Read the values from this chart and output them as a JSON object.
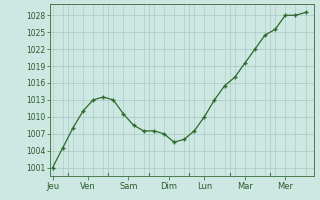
{
  "y_values": [
    1001,
    1004.5,
    1008,
    1011,
    1013,
    1013.5,
    1013,
    1010.5,
    1008.5,
    1007.5,
    1007.5,
    1007,
    1005.5,
    1006,
    1007.5,
    1010,
    1013,
    1015.5,
    1017,
    1019.5,
    1022,
    1024.5,
    1025.5,
    1028,
    1028,
    1028.5
  ],
  "yticks": [
    1001,
    1004,
    1007,
    1010,
    1013,
    1016,
    1019,
    1022,
    1025,
    1028
  ],
  "ylim": [
    999.5,
    1030
  ],
  "xtick_positions": [
    0,
    3.5,
    7.5,
    11.5,
    15,
    19,
    23,
    25.5
  ],
  "xtick_labels": [
    "Jeu",
    "Ven",
    "Sam",
    "Dim",
    "Lun",
    "Mar",
    "Mer",
    ""
  ],
  "vline_positions": [
    1.5,
    5.5,
    9.5,
    13.5,
    17.5,
    21.5
  ],
  "xlim": [
    -0.3,
    25.8
  ],
  "line_color": "#2d6a2d",
  "marker_color": "#2d6a2d",
  "bg_color": "#cde8e2",
  "grid_color": "#a8c8c0",
  "text_color": "#2d5a2d",
  "spine_color": "#4a7a4a"
}
